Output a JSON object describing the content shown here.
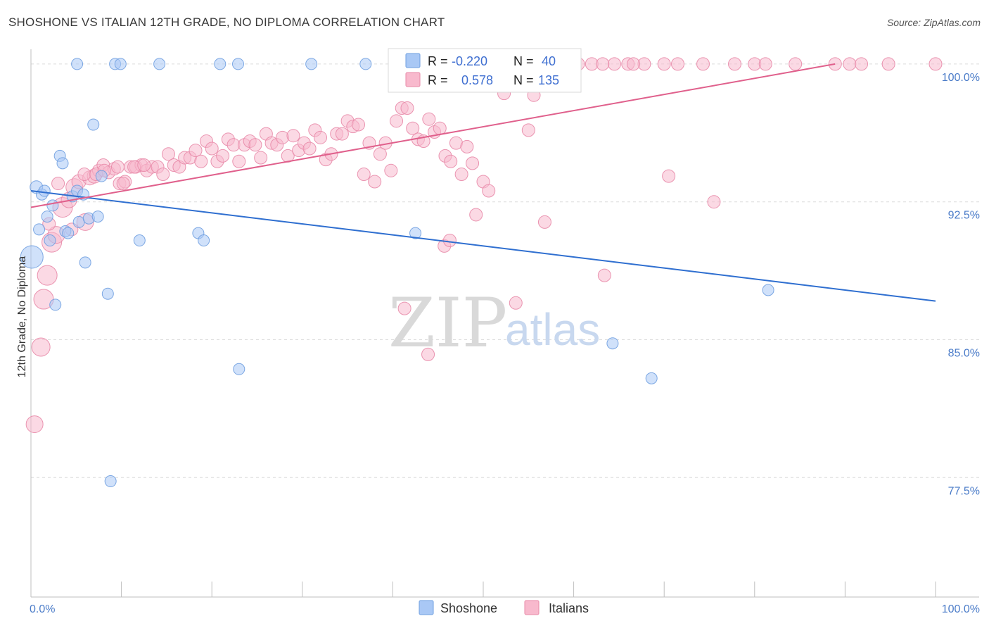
{
  "title": "SHOSHONE VS ITALIAN 12TH GRADE, NO DIPLOMA CORRELATION CHART",
  "source": "Source: ZipAtlas.com",
  "watermark": {
    "zip": "ZIP",
    "atlas": "atlas"
  },
  "legend": {
    "r_label": "R =",
    "n_label": "N =",
    "rows": [
      {
        "r": "-0.220",
        "n": "40",
        "color": "#a9c8f5",
        "stroke": "#6f9fe0"
      },
      {
        "r": "0.578",
        "n": "135",
        "color": "#f8b9cd",
        "stroke": "#e88aa8"
      }
    ]
  },
  "chart_data": {
    "type": "scatter",
    "title": "SHOSHONE VS ITALIAN 12TH GRADE, NO DIPLOMA CORRELATION CHART",
    "xlabel": "",
    "ylabel": "12th Grade, No Diploma",
    "xlim": [
      0,
      100
    ],
    "ylim": [
      71.0,
      100.8
    ],
    "x_tick_labels": [
      {
        "value": 0,
        "label": "0.0%"
      },
      {
        "value": 100,
        "label": "100.0%"
      }
    ],
    "y_tick_labels": [
      {
        "value": 100.0,
        "label": "100.0%"
      },
      {
        "value": 92.5,
        "label": "92.5%"
      },
      {
        "value": 85.0,
        "label": "85.0%"
      },
      {
        "value": 77.5,
        "label": "77.5%"
      }
    ],
    "grid": "horizontal dashed",
    "legend_position": "top-center",
    "series": [
      {
        "name": "Shoshone",
        "color": "#a9c8f5",
        "stroke": "#6f9fe0",
        "trend": {
          "x": [
            0,
            100
          ],
          "y": [
            93.1,
            87.1
          ],
          "color": "#2f6fd0"
        },
        "points": [
          [
            0.1,
            89.5,
            16
          ],
          [
            0.6,
            93.3,
            9
          ],
          [
            0.9,
            91.0,
            8
          ],
          [
            1.2,
            92.9,
            8
          ],
          [
            1.5,
            93.1,
            8
          ],
          [
            1.8,
            91.7,
            8
          ],
          [
            2.1,
            90.4,
            8
          ],
          [
            2.4,
            92.3,
            8
          ],
          [
            2.7,
            86.9,
            8
          ],
          [
            3.2,
            95.0,
            8
          ],
          [
            3.5,
            94.6,
            8
          ],
          [
            3.8,
            90.9,
            8
          ],
          [
            4.1,
            90.8,
            8
          ],
          [
            4.6,
            92.8,
            8
          ],
          [
            5.1,
            93.1,
            8
          ],
          [
            5.3,
            91.4,
            8
          ],
          [
            5.8,
            92.9,
            8
          ],
          [
            6.0,
            89.2,
            8
          ],
          [
            6.4,
            91.6,
            8
          ],
          [
            6.9,
            96.7,
            8
          ],
          [
            7.4,
            91.7,
            8
          ],
          [
            7.8,
            93.9,
            8
          ],
          [
            8.5,
            87.5,
            8
          ],
          [
            8.8,
            77.3,
            8
          ],
          [
            9.3,
            100.0,
            8
          ],
          [
            9.9,
            100.0,
            8
          ],
          [
            12.0,
            90.4,
            8
          ],
          [
            14.2,
            100.0,
            8
          ],
          [
            18.5,
            90.8,
            8
          ],
          [
            19.1,
            90.4,
            8
          ],
          [
            20.9,
            100.0,
            8
          ],
          [
            22.9,
            100.0,
            8
          ],
          [
            23.0,
            83.4,
            8
          ],
          [
            31.0,
            100.0,
            8
          ],
          [
            37.0,
            100.0,
            8
          ],
          [
            42.5,
            90.8,
            8
          ],
          [
            64.3,
            84.8,
            8
          ],
          [
            68.6,
            82.9,
            8
          ],
          [
            81.5,
            87.7,
            8
          ],
          [
            5.1,
            100.0,
            8
          ]
        ]
      },
      {
        "name": "Italians",
        "color": "#f8b9cd",
        "stroke": "#e88aa8",
        "trend": {
          "x": [
            0,
            88.9
          ],
          "y": [
            92.2,
            100.0
          ],
          "color": "#e0608c"
        },
        "points": [
          [
            0.4,
            80.4,
            12
          ],
          [
            1.1,
            84.6,
            13
          ],
          [
            1.4,
            87.2,
            14
          ],
          [
            1.8,
            88.5,
            14
          ],
          [
            2.3,
            90.3,
            14
          ],
          [
            2.8,
            90.7,
            12
          ],
          [
            3.5,
            92.2,
            14
          ],
          [
            4.2,
            92.6,
            11
          ],
          [
            4.8,
            93.3,
            12
          ],
          [
            5.3,
            93.6,
            10
          ],
          [
            6.0,
            91.4,
            12
          ],
          [
            6.5,
            93.8,
            10
          ],
          [
            7.0,
            93.9,
            10
          ],
          [
            7.5,
            94.2,
            9
          ],
          [
            8.0,
            94.5,
            9
          ],
          [
            8.6,
            94.1,
            9
          ],
          [
            9.2,
            94.3,
            9
          ],
          [
            9.8,
            93.5,
            9
          ],
          [
            10.4,
            93.6,
            9
          ],
          [
            11.0,
            94.4,
            9
          ],
          [
            11.6,
            94.4,
            9
          ],
          [
            12.2,
            94.5,
            9
          ],
          [
            12.8,
            94.2,
            9
          ],
          [
            13.4,
            94.4,
            9
          ],
          [
            14.0,
            94.4,
            9
          ],
          [
            14.6,
            94.0,
            9
          ],
          [
            15.2,
            95.1,
            9
          ],
          [
            15.8,
            94.5,
            9
          ],
          [
            16.4,
            94.4,
            9
          ],
          [
            17.0,
            94.9,
            9
          ],
          [
            17.6,
            94.9,
            9
          ],
          [
            18.2,
            95.3,
            9
          ],
          [
            18.8,
            94.7,
            9
          ],
          [
            19.4,
            95.8,
            9
          ],
          [
            20.0,
            95.4,
            9
          ],
          [
            20.6,
            94.7,
            9
          ],
          [
            21.2,
            95.0,
            9
          ],
          [
            21.8,
            95.9,
            9
          ],
          [
            22.4,
            95.6,
            9
          ],
          [
            23.0,
            94.7,
            9
          ],
          [
            23.6,
            95.6,
            9
          ],
          [
            24.2,
            95.8,
            9
          ],
          [
            24.8,
            95.6,
            9
          ],
          [
            25.4,
            94.9,
            9
          ],
          [
            26.0,
            96.2,
            9
          ],
          [
            26.6,
            95.7,
            9
          ],
          [
            27.2,
            95.6,
            9
          ],
          [
            27.8,
            96.0,
            9
          ],
          [
            28.4,
            95.0,
            9
          ],
          [
            29.0,
            96.1,
            9
          ],
          [
            29.6,
            95.3,
            9
          ],
          [
            30.2,
            95.7,
            9
          ],
          [
            30.8,
            95.4,
            9
          ],
          [
            31.4,
            96.4,
            9
          ],
          [
            32.0,
            96.0,
            9
          ],
          [
            32.6,
            94.8,
            9
          ],
          [
            33.2,
            95.1,
            9
          ],
          [
            33.8,
            96.2,
            9
          ],
          [
            34.4,
            96.2,
            9
          ],
          [
            35.0,
            96.9,
            9
          ],
          [
            35.6,
            96.6,
            9
          ],
          [
            36.2,
            96.7,
            9
          ],
          [
            36.8,
            94.0,
            9
          ],
          [
            37.4,
            95.7,
            9
          ],
          [
            38.0,
            93.6,
            9
          ],
          [
            38.6,
            95.1,
            9
          ],
          [
            39.2,
            95.7,
            9
          ],
          [
            39.8,
            94.2,
            9
          ],
          [
            40.4,
            96.9,
            9
          ],
          [
            41.0,
            97.6,
            9
          ],
          [
            41.6,
            97.6,
            9
          ],
          [
            42.2,
            96.5,
            9
          ],
          [
            42.8,
            95.9,
            9
          ],
          [
            43.4,
            95.8,
            9
          ],
          [
            44.0,
            97.0,
            9
          ],
          [
            44.6,
            96.3,
            9
          ],
          [
            45.2,
            96.5,
            9
          ],
          [
            45.8,
            95.0,
            9
          ],
          [
            46.4,
            94.7,
            9
          ],
          [
            47.0,
            95.7,
            9
          ],
          [
            47.6,
            94.0,
            9
          ],
          [
            48.2,
            95.5,
            9
          ],
          [
            48.8,
            94.6,
            9
          ],
          [
            50.0,
            93.6,
            9
          ],
          [
            50.6,
            93.1,
            9
          ],
          [
            49.2,
            91.8,
            9
          ],
          [
            41.3,
            86.7,
            9
          ],
          [
            43.9,
            84.2,
            9
          ],
          [
            45.7,
            90.1,
            9
          ],
          [
            46.3,
            90.4,
            9
          ],
          [
            52.3,
            98.4,
            9
          ],
          [
            53.6,
            87.0,
            9
          ],
          [
            55.0,
            96.4,
            9
          ],
          [
            55.6,
            98.3,
            9
          ],
          [
            56.8,
            91.4,
            9
          ],
          [
            63.4,
            88.5,
            9
          ],
          [
            70.5,
            93.9,
            9
          ],
          [
            75.5,
            92.5,
            9
          ],
          [
            58.0,
            100.0,
            9
          ],
          [
            59.3,
            100.0,
            9
          ],
          [
            60.5,
            100.0,
            9
          ],
          [
            62.0,
            100.0,
            9
          ],
          [
            64.5,
            100.0,
            9
          ],
          [
            66.0,
            100.0,
            9
          ],
          [
            67.8,
            100.0,
            9
          ],
          [
            71.5,
            100.0,
            9
          ],
          [
            74.3,
            100.0,
            9
          ],
          [
            77.8,
            100.0,
            9
          ],
          [
            80.0,
            100.0,
            9
          ],
          [
            81.2,
            100.0,
            9
          ],
          [
            84.5,
            100.0,
            9
          ],
          [
            88.9,
            100.0,
            9
          ],
          [
            90.5,
            100.0,
            9
          ],
          [
            91.8,
            100.0,
            9
          ],
          [
            94.8,
            100.0,
            9
          ],
          [
            100.0,
            100.0,
            9
          ],
          [
            52.8,
            100.0,
            9
          ],
          [
            54.0,
            100.0,
            9
          ],
          [
            55.2,
            100.0,
            9
          ],
          [
            56.4,
            100.0,
            9
          ],
          [
            57.3,
            100.0,
            9
          ],
          [
            59.9,
            100.0,
            9
          ],
          [
            63.2,
            100.0,
            9
          ],
          [
            66.6,
            100.0,
            9
          ],
          [
            70.0,
            100.0,
            9
          ],
          [
            2.0,
            91.3,
            9
          ],
          [
            3.0,
            93.5,
            9
          ],
          [
            4.5,
            91.0,
            9
          ],
          [
            5.9,
            94.0,
            9
          ],
          [
            7.2,
            94.0,
            9
          ],
          [
            8.1,
            94.2,
            9
          ],
          [
            9.6,
            94.4,
            9
          ],
          [
            10.2,
            93.5,
            9
          ],
          [
            11.4,
            94.4,
            9
          ],
          [
            12.5,
            94.5,
            9
          ]
        ]
      }
    ]
  }
}
